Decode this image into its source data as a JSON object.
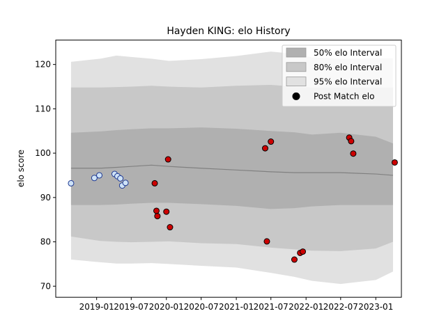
{
  "chart_data": {
    "type": "line",
    "title": "Hayden KING: elo History",
    "xlabel": "",
    "ylabel": "elo score",
    "x_ticks": [
      "2019-01",
      "2019-07",
      "2020-01",
      "2020-07",
      "2021-01",
      "2021-07",
      "2022-01",
      "2022-07",
      "2023-01"
    ],
    "y_ticks": [
      70,
      80,
      90,
      100,
      110,
      120
    ],
    "xlim": [
      "2018-06-01",
      "2023-05-15"
    ],
    "ylim": [
      67.5,
      125.5
    ],
    "legend_position": "upper right",
    "grid": false,
    "colors": {
      "band_50": "#b0b0b0",
      "band_80": "#c8c8c8",
      "band_95": "#e1e1e1",
      "mean_line": "#808080",
      "pre_point_fill": "#cfe3f7",
      "pre_point_edge": "#1f3a93",
      "post_point_fill": "#cc0000",
      "post_point_edge": "#000000"
    },
    "legend": [
      {
        "label": "50% elo Interval",
        "kind": "band_50"
      },
      {
        "label": "80% elo Interval",
        "kind": "band_80"
      },
      {
        "label": "95% elo Interval",
        "kind": "band_95"
      },
      {
        "label": "Post Match elo",
        "kind": "point"
      }
    ],
    "bands": {
      "x": [
        "2018-08-20",
        "2019-01-20",
        "2019-04-15",
        "2019-07-01",
        "2019-10-15",
        "2020-01-15",
        "2020-07-01",
        "2021-01-01",
        "2021-07-01",
        "2021-11-01",
        "2022-02-01",
        "2022-07-01",
        "2023-01-01",
        "2023-04-01"
      ],
      "mid": [
        96.6,
        96.6,
        96.8,
        97.0,
        97.3,
        97.0,
        96.6,
        96.2,
        95.8,
        95.6,
        95.6,
        95.6,
        95.3,
        95.0
      ],
      "band_50": {
        "upper": [
          104.6,
          104.9,
          105.2,
          105.4,
          105.6,
          105.6,
          105.8,
          105.5,
          105.0,
          104.7,
          104.2,
          104.6,
          103.7,
          102.2
        ],
        "lower": [
          88.3,
          88.3,
          88.4,
          88.6,
          88.8,
          88.8,
          88.5,
          88.1,
          87.4,
          87.6,
          88.0,
          88.3,
          88.3,
          88.3
        ]
      },
      "band_80": {
        "upper": [
          114.8,
          114.8,
          114.9,
          115.0,
          115.2,
          115.0,
          114.8,
          115.2,
          115.4,
          115.0,
          114.8,
          114.8,
          114.8,
          114.8
        ],
        "lower": [
          81.2,
          80.2,
          80.0,
          79.9,
          80.0,
          80.1,
          79.7,
          79.5,
          78.7,
          78.3,
          78.0,
          77.9,
          78.5,
          80.0
        ]
      },
      "band_95": {
        "upper": [
          120.6,
          121.3,
          122.0,
          121.7,
          121.3,
          120.8,
          121.2,
          121.9,
          122.9,
          122.4,
          121.6,
          121.3,
          121.4,
          121.4
        ],
        "lower": [
          76.0,
          75.4,
          75.1,
          75.1,
          75.2,
          75.0,
          74.6,
          74.2,
          73.0,
          72.1,
          71.2,
          70.5,
          71.4,
          73.3
        ]
      }
    },
    "pre_matches": [
      {
        "date": "2018-08-20",
        "elo": 93.2
      },
      {
        "date": "2018-12-20",
        "elo": 94.4
      },
      {
        "date": "2019-01-15",
        "elo": 95.0
      },
      {
        "date": "2019-04-05",
        "elo": 95.3
      },
      {
        "date": "2019-04-20",
        "elo": 94.8
      },
      {
        "date": "2019-05-05",
        "elo": 94.3
      },
      {
        "date": "2019-05-15",
        "elo": 92.7
      },
      {
        "date": "2019-06-01",
        "elo": 93.3
      }
    ],
    "post_matches": [
      {
        "date": "2019-11-01",
        "elo": 93.2
      },
      {
        "date": "2019-11-10",
        "elo": 87.0
      },
      {
        "date": "2019-11-15",
        "elo": 85.8
      },
      {
        "date": "2020-01-01",
        "elo": 86.8
      },
      {
        "date": "2020-01-10",
        "elo": 98.6
      },
      {
        "date": "2020-01-20",
        "elo": 83.3
      },
      {
        "date": "2021-06-01",
        "elo": 101.1
      },
      {
        "date": "2021-06-10",
        "elo": 80.1
      },
      {
        "date": "2021-07-01",
        "elo": 102.6
      },
      {
        "date": "2021-11-01",
        "elo": 76.0
      },
      {
        "date": "2021-12-01",
        "elo": 77.5
      },
      {
        "date": "2021-12-15",
        "elo": 77.8
      },
      {
        "date": "2022-08-15",
        "elo": 103.5
      },
      {
        "date": "2022-08-25",
        "elo": 102.7
      },
      {
        "date": "2022-09-05",
        "elo": 99.9
      },
      {
        "date": "2023-04-10",
        "elo": 97.9
      }
    ]
  }
}
